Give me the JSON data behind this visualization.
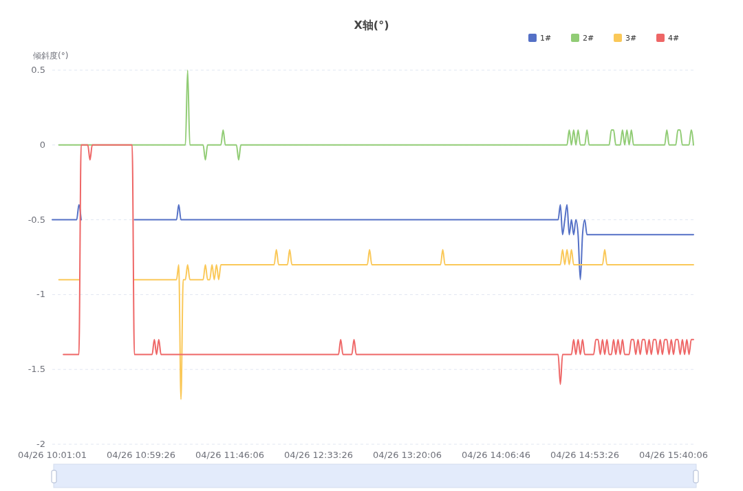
{
  "chart_data": {
    "type": "line",
    "title": "X轴(°)",
    "ylabel": "倾斜度(°)",
    "categories": [
      "04/26 10:01:01",
      null,
      null,
      null,
      null,
      null,
      null,
      null,
      null,
      null,
      null,
      null,
      null,
      null,
      null,
      null,
      null,
      null,
      null,
      null,
      null,
      null,
      null,
      null,
      null,
      null,
      null,
      null,
      null,
      null,
      null,
      null,
      null,
      null,
      null,
      null,
      null,
      null,
      null,
      null,
      "04/26 10:59:26",
      null,
      null,
      null,
      null,
      null,
      null,
      null,
      null,
      null,
      null,
      null,
      null,
      null,
      null,
      null,
      null,
      null,
      null,
      null,
      null,
      null,
      null,
      null,
      null,
      null,
      null,
      null,
      null,
      null,
      null,
      null,
      null,
      null,
      null,
      null,
      null,
      null,
      null,
      null,
      "04/26 11:46:06",
      null,
      null,
      null,
      null,
      null,
      null,
      null,
      null,
      null,
      null,
      null,
      null,
      null,
      null,
      null,
      null,
      null,
      null,
      null,
      null,
      null,
      null,
      null,
      null,
      null,
      null,
      null,
      null,
      null,
      null,
      null,
      null,
      null,
      null,
      null,
      null,
      null,
      null,
      null,
      "04/26 12:33:26",
      null,
      null,
      null,
      null,
      null,
      null,
      null,
      null,
      null,
      null,
      null,
      null,
      null,
      null,
      null,
      null,
      null,
      null,
      null,
      null,
      null,
      null,
      null,
      null,
      null,
      null,
      null,
      null,
      null,
      null,
      null,
      null,
      null,
      null,
      null,
      null,
      null,
      null,
      null,
      "04/26 13:20:06",
      null,
      null,
      null,
      null,
      null,
      null,
      null,
      null,
      null,
      null,
      null,
      null,
      null,
      null,
      null,
      null,
      null,
      null,
      null,
      null,
      null,
      null,
      null,
      null,
      null,
      null,
      null,
      null,
      null,
      null,
      null,
      null,
      null,
      null,
      null,
      null,
      null,
      null,
      null,
      "04/26 14:06:46",
      null,
      null,
      null,
      null,
      null,
      null,
      null,
      null,
      null,
      null,
      null,
      null,
      null,
      null,
      null,
      null,
      null,
      null,
      null,
      null,
      null,
      null,
      null,
      null,
      null,
      null,
      null,
      null,
      null,
      null,
      null,
      null,
      null,
      null,
      null,
      null,
      null,
      null,
      null,
      "04/26 14:53:26",
      null,
      null,
      null,
      null,
      null,
      null,
      null,
      null,
      null,
      null,
      null,
      null,
      null,
      null,
      null,
      null,
      null,
      null,
      null,
      null,
      null,
      null,
      null,
      null,
      null,
      null,
      null,
      null,
      null,
      null,
      null,
      null,
      null,
      null,
      null,
      null,
      null,
      null,
      null,
      "04/26 15:40:06",
      null,
      null,
      null,
      null,
      null,
      null,
      null,
      null,
      null
    ],
    "series": [
      {
        "name": "1#",
        "color": "#5470c6",
        "values": [
          -0.5,
          -0.5,
          -0.5,
          -0.5,
          -0.5,
          -0.5,
          -0.5,
          -0.5,
          -0.5,
          -0.5,
          -0.5,
          -0.5,
          -0.4,
          -0.5,
          null,
          null,
          null,
          null,
          null,
          null,
          null,
          null,
          null,
          null,
          null,
          null,
          null,
          null,
          null,
          null,
          null,
          null,
          null,
          null,
          null,
          null,
          null,
          -0.5,
          -0.5,
          -0.5,
          -0.5,
          -0.5,
          -0.5,
          -0.5,
          -0.5,
          -0.5,
          -0.5,
          -0.5,
          -0.5,
          -0.5,
          -0.5,
          -0.5,
          -0.5,
          -0.5,
          -0.5,
          -0.5,
          -0.5,
          -0.4,
          -0.5,
          -0.5,
          -0.5,
          -0.5,
          -0.5,
          -0.5,
          -0.5,
          -0.5,
          -0.5,
          -0.5,
          -0.5,
          -0.5,
          -0.5,
          -0.5,
          -0.5,
          -0.5,
          -0.5,
          -0.5,
          -0.5,
          -0.5,
          -0.5,
          -0.5,
          -0.5,
          -0.5,
          -0.5,
          -0.5,
          -0.5,
          -0.5,
          -0.5,
          -0.5,
          -0.5,
          -0.5,
          -0.5,
          -0.5,
          -0.5,
          -0.5,
          -0.5,
          -0.5,
          -0.5,
          -0.5,
          -0.5,
          -0.5,
          -0.5,
          -0.5,
          -0.5,
          -0.5,
          -0.5,
          -0.5,
          -0.5,
          -0.5,
          -0.5,
          -0.5,
          -0.5,
          -0.5,
          -0.5,
          -0.5,
          -0.5,
          -0.5,
          -0.5,
          -0.5,
          -0.5,
          -0.5,
          -0.5,
          -0.5,
          -0.5,
          -0.5,
          -0.5,
          -0.5,
          -0.5,
          -0.5,
          -0.5,
          -0.5,
          -0.5,
          -0.5,
          -0.5,
          -0.5,
          -0.5,
          -0.5,
          -0.5,
          -0.5,
          -0.5,
          -0.5,
          -0.5,
          -0.5,
          -0.5,
          -0.5,
          -0.5,
          -0.5,
          -0.5,
          -0.5,
          -0.5,
          -0.5,
          -0.5,
          -0.5,
          -0.5,
          -0.5,
          -0.5,
          -0.5,
          -0.5,
          -0.5,
          -0.5,
          -0.5,
          -0.5,
          -0.5,
          -0.5,
          -0.5,
          -0.5,
          -0.5,
          -0.5,
          -0.5,
          -0.5,
          -0.5,
          -0.5,
          -0.5,
          -0.5,
          -0.5,
          -0.5,
          -0.5,
          -0.5,
          -0.5,
          -0.5,
          -0.5,
          -0.5,
          -0.5,
          -0.5,
          -0.5,
          -0.5,
          -0.5,
          -0.5,
          -0.5,
          -0.5,
          -0.5,
          -0.5,
          -0.5,
          -0.5,
          -0.5,
          -0.5,
          -0.5,
          -0.5,
          -0.5,
          -0.5,
          -0.5,
          -0.5,
          -0.5,
          -0.5,
          -0.5,
          -0.5,
          -0.5,
          -0.5,
          -0.5,
          -0.5,
          -0.5,
          -0.5,
          -0.5,
          -0.5,
          -0.5,
          -0.5,
          -0.5,
          -0.5,
          -0.5,
          -0.5,
          -0.5,
          -0.5,
          -0.5,
          -0.5,
          -0.5,
          -0.5,
          -0.5,
          -0.5,
          -0.5,
          -0.5,
          -0.4,
          -0.6,
          -0.5,
          -0.4,
          -0.6,
          -0.5,
          -0.6,
          -0.5,
          -0.6,
          -0.9,
          -0.6,
          -0.5,
          -0.6,
          -0.6,
          -0.6,
          -0.6,
          -0.6,
          -0.6,
          -0.6,
          -0.6,
          -0.6,
          -0.6,
          -0.6,
          -0.6,
          -0.6,
          -0.6,
          -0.6,
          -0.6,
          -0.6,
          -0.6,
          -0.6,
          -0.6,
          -0.6,
          -0.6,
          -0.6,
          -0.6,
          -0.6,
          -0.6,
          -0.6,
          -0.6,
          -0.6,
          -0.6,
          -0.6,
          -0.6,
          -0.6,
          -0.6,
          -0.6,
          -0.6,
          -0.6,
          -0.6,
          -0.6,
          -0.6,
          -0.6,
          -0.6,
          -0.6,
          -0.6,
          -0.6,
          -0.6,
          -0.6,
          -0.6,
          -0.6
        ]
      },
      {
        "name": "2#",
        "color": "#91cc75",
        "values": [
          null,
          null,
          null,
          0,
          0,
          0,
          0,
          0,
          0,
          0,
          0,
          0,
          0,
          0,
          0,
          0,
          0,
          0,
          0,
          0,
          0,
          0,
          0,
          0,
          0,
          0,
          0,
          0,
          0,
          0,
          0,
          0,
          0,
          0,
          0,
          0,
          0,
          0,
          0,
          0,
          0,
          0,
          0,
          0,
          0,
          0,
          0,
          0,
          0,
          0,
          0,
          0,
          0,
          0,
          0,
          0,
          0,
          0,
          0,
          0,
          0,
          0.5,
          0,
          0,
          0,
          0,
          0,
          0,
          0,
          -0.1,
          0,
          0,
          0,
          0,
          0,
          0,
          0,
          0.1,
          0,
          0,
          0,
          0,
          0,
          0,
          -0.1,
          0,
          0,
          0,
          0,
          0,
          0,
          0,
          0,
          0,
          0,
          0,
          0,
          0,
          0,
          0,
          0,
          0,
          0,
          0,
          0,
          0,
          0,
          0,
          0,
          0,
          0,
          0,
          0,
          0,
          0,
          0,
          0,
          0,
          0,
          0,
          0,
          0,
          0,
          0,
          0,
          0,
          0,
          0,
          0,
          0,
          0,
          0,
          0,
          0,
          0,
          0,
          0,
          0,
          0,
          0,
          0,
          0,
          0,
          0,
          0,
          0,
          0,
          0,
          0,
          0,
          0,
          0,
          0,
          0,
          0,
          0,
          0,
          0,
          0,
          0,
          0,
          0,
          0,
          0,
          0,
          0,
          0,
          0,
          0,
          0,
          0,
          0,
          0,
          0,
          0,
          0,
          0,
          0,
          0,
          0,
          0,
          0,
          0,
          0,
          0,
          0,
          0,
          0,
          0,
          0,
          0,
          0,
          0,
          0,
          0,
          0,
          0,
          0,
          0,
          0,
          0,
          0,
          0,
          0,
          0,
          0,
          0,
          0,
          0,
          0,
          0,
          0,
          0,
          0,
          0,
          0,
          0,
          0,
          0,
          0,
          0,
          0,
          0,
          0,
          0,
          0,
          0,
          0,
          0,
          0,
          0,
          0,
          0,
          0.1,
          0,
          0.1,
          0,
          0.1,
          0,
          0,
          0,
          0.1,
          0,
          0,
          0,
          0,
          0,
          0,
          0,
          0,
          0,
          0,
          0.1,
          0.1,
          0,
          0,
          0,
          0.1,
          0,
          0.1,
          0,
          0.1,
          0,
          0,
          0,
          0,
          0,
          0,
          0,
          0,
          0,
          0,
          0,
          0,
          0,
          0,
          0,
          0.1,
          0,
          0,
          0,
          0,
          0.1,
          0.1,
          0,
          0,
          0,
          0,
          0.1,
          0
        ]
      },
      {
        "name": "3#",
        "color": "#fac858",
        "values": [
          null,
          null,
          null,
          -0.9,
          -0.9,
          -0.9,
          -0.9,
          -0.9,
          -0.9,
          -0.9,
          -0.9,
          -0.9,
          -0.9,
          null,
          null,
          null,
          null,
          null,
          null,
          null,
          null,
          null,
          null,
          null,
          null,
          null,
          null,
          null,
          null,
          null,
          null,
          null,
          null,
          null,
          null,
          null,
          null,
          -0.9,
          -0.9,
          -0.9,
          -0.9,
          -0.9,
          -0.9,
          -0.9,
          -0.9,
          -0.9,
          -0.9,
          -0.9,
          -0.9,
          -0.9,
          -0.9,
          -0.9,
          -0.9,
          -0.9,
          -0.9,
          -0.9,
          -0.9,
          -0.8,
          -1.7,
          -0.9,
          -0.9,
          -0.8,
          -0.9,
          -0.9,
          -0.9,
          -0.9,
          -0.9,
          -0.9,
          -0.9,
          -0.8,
          -0.9,
          -0.9,
          -0.8,
          -0.9,
          -0.8,
          -0.9,
          -0.8,
          -0.8,
          -0.8,
          -0.8,
          -0.8,
          -0.8,
          -0.8,
          -0.8,
          -0.8,
          -0.8,
          -0.8,
          -0.8,
          -0.8,
          -0.8,
          -0.8,
          -0.8,
          -0.8,
          -0.8,
          -0.8,
          -0.8,
          -0.8,
          -0.8,
          -0.8,
          -0.8,
          -0.8,
          -0.7,
          -0.8,
          -0.8,
          -0.8,
          -0.8,
          -0.8,
          -0.7,
          -0.8,
          -0.8,
          -0.8,
          -0.8,
          -0.8,
          -0.8,
          -0.8,
          -0.8,
          -0.8,
          -0.8,
          -0.8,
          -0.8,
          -0.8,
          -0.8,
          -0.8,
          -0.8,
          -0.8,
          -0.8,
          -0.8,
          -0.8,
          -0.8,
          -0.8,
          -0.8,
          -0.8,
          -0.8,
          -0.8,
          -0.8,
          -0.8,
          -0.8,
          -0.8,
          -0.8,
          -0.8,
          -0.8,
          -0.8,
          -0.8,
          -0.7,
          -0.8,
          -0.8,
          -0.8,
          -0.8,
          -0.8,
          -0.8,
          -0.8,
          -0.8,
          -0.8,
          -0.8,
          -0.8,
          -0.8,
          -0.8,
          -0.8,
          -0.8,
          -0.8,
          -0.8,
          -0.8,
          -0.8,
          -0.8,
          -0.8,
          -0.8,
          -0.8,
          -0.8,
          -0.8,
          -0.8,
          -0.8,
          -0.8,
          -0.8,
          -0.8,
          -0.8,
          -0.8,
          -0.7,
          -0.8,
          -0.8,
          -0.8,
          -0.8,
          -0.8,
          -0.8,
          -0.8,
          -0.8,
          -0.8,
          -0.8,
          -0.8,
          -0.8,
          -0.8,
          -0.8,
          -0.8,
          -0.8,
          -0.8,
          -0.8,
          -0.8,
          -0.8,
          -0.8,
          -0.8,
          -0.8,
          -0.8,
          -0.8,
          -0.8,
          -0.8,
          -0.8,
          -0.8,
          -0.8,
          -0.8,
          -0.8,
          -0.8,
          -0.8,
          -0.8,
          -0.8,
          -0.8,
          -0.8,
          -0.8,
          -0.8,
          -0.8,
          -0.8,
          -0.8,
          -0.8,
          -0.8,
          -0.8,
          -0.8,
          -0.8,
          -0.8,
          -0.8,
          -0.8,
          -0.8,
          -0.8,
          -0.7,
          -0.8,
          -0.7,
          -0.8,
          -0.7,
          -0.8,
          -0.8,
          -0.8,
          -0.8,
          -0.8,
          -0.8,
          -0.8,
          -0.8,
          -0.8,
          -0.8,
          -0.8,
          -0.8,
          -0.8,
          -0.8,
          -0.7,
          -0.8,
          -0.8,
          -0.8,
          -0.8,
          -0.8,
          -0.8,
          -0.8,
          -0.8,
          -0.8,
          -0.8,
          -0.8,
          -0.8,
          -0.8,
          -0.8,
          -0.8,
          -0.8,
          -0.8,
          -0.8,
          -0.8,
          -0.8,
          -0.8,
          -0.8,
          -0.8,
          -0.8,
          -0.8,
          -0.8,
          -0.8,
          -0.8,
          -0.8,
          -0.8,
          -0.8,
          -0.8,
          -0.8,
          -0.8,
          -0.8,
          -0.8,
          -0.8,
          -0.8,
          -0.8,
          -0.8
        ]
      },
      {
        "name": "4#",
        "color": "#ee6666",
        "values": [
          null,
          null,
          null,
          null,
          null,
          -1.4,
          -1.4,
          -1.4,
          -1.4,
          -1.4,
          -1.4,
          -1.4,
          -1.4,
          0,
          0,
          0,
          0,
          -0.1,
          0,
          0,
          0,
          0,
          0,
          0,
          0,
          0,
          0,
          0,
          0,
          0,
          0,
          0,
          0,
          0,
          0,
          0,
          0,
          -1.4,
          -1.4,
          -1.4,
          -1.4,
          -1.4,
          -1.4,
          -1.4,
          -1.4,
          -1.4,
          -1.3,
          -1.4,
          -1.3,
          -1.4,
          -1.4,
          -1.4,
          -1.4,
          -1.4,
          -1.4,
          -1.4,
          -1.4,
          -1.4,
          -1.4,
          -1.4,
          -1.4,
          -1.4,
          -1.4,
          -1.4,
          -1.4,
          -1.4,
          -1.4,
          -1.4,
          -1.4,
          -1.4,
          -1.4,
          -1.4,
          -1.4,
          -1.4,
          -1.4,
          -1.4,
          -1.4,
          -1.4,
          -1.4,
          -1.4,
          -1.4,
          -1.4,
          -1.4,
          -1.4,
          -1.4,
          -1.4,
          -1.4,
          -1.4,
          -1.4,
          -1.4,
          -1.4,
          -1.4,
          -1.4,
          -1.4,
          -1.4,
          -1.4,
          -1.4,
          -1.4,
          -1.4,
          -1.4,
          -1.4,
          -1.4,
          -1.4,
          -1.4,
          -1.4,
          -1.4,
          -1.4,
          -1.4,
          -1.4,
          -1.4,
          -1.4,
          -1.4,
          -1.4,
          -1.4,
          -1.4,
          -1.4,
          -1.4,
          -1.4,
          -1.4,
          -1.4,
          -1.4,
          -1.4,
          -1.4,
          -1.4,
          -1.4,
          -1.4,
          -1.4,
          -1.4,
          -1.4,
          -1.4,
          -1.3,
          -1.4,
          -1.4,
          -1.4,
          -1.4,
          -1.4,
          -1.3,
          -1.4,
          -1.4,
          -1.4,
          -1.4,
          -1.4,
          -1.4,
          -1.4,
          -1.4,
          -1.4,
          -1.4,
          -1.4,
          -1.4,
          -1.4,
          -1.4,
          -1.4,
          -1.4,
          -1.4,
          -1.4,
          -1.4,
          -1.4,
          -1.4,
          -1.4,
          -1.4,
          -1.4,
          -1.4,
          -1.4,
          -1.4,
          -1.4,
          -1.4,
          -1.4,
          -1.4,
          -1.4,
          -1.4,
          -1.4,
          -1.4,
          -1.4,
          -1.4,
          -1.4,
          -1.4,
          -1.4,
          -1.4,
          -1.4,
          -1.4,
          -1.4,
          -1.4,
          -1.4,
          -1.4,
          -1.4,
          -1.4,
          -1.4,
          -1.4,
          -1.4,
          -1.4,
          -1.4,
          -1.4,
          -1.4,
          -1.4,
          -1.4,
          -1.4,
          -1.4,
          -1.4,
          -1.4,
          -1.4,
          -1.4,
          -1.4,
          -1.4,
          -1.4,
          -1.4,
          -1.4,
          -1.4,
          -1.4,
          -1.4,
          -1.4,
          -1.4,
          -1.4,
          -1.4,
          -1.4,
          -1.4,
          -1.4,
          -1.4,
          -1.4,
          -1.4,
          -1.4,
          -1.4,
          -1.4,
          -1.4,
          -1.4,
          -1.4,
          -1.4,
          -1.4,
          -1.4,
          -1.4,
          -1.6,
          -1.4,
          -1.4,
          -1.4,
          -1.4,
          -1.4,
          -1.3,
          -1.4,
          -1.3,
          -1.4,
          -1.3,
          -1.4,
          -1.4,
          -1.4,
          -1.4,
          -1.4,
          -1.3,
          -1.3,
          -1.4,
          -1.3,
          -1.4,
          -1.3,
          -1.4,
          -1.4,
          -1.3,
          -1.4,
          -1.3,
          -1.4,
          -1.3,
          -1.4,
          -1.4,
          -1.4,
          -1.3,
          -1.3,
          -1.4,
          -1.3,
          -1.4,
          -1.3,
          -1.3,
          -1.4,
          -1.3,
          -1.4,
          -1.3,
          -1.3,
          -1.4,
          -1.3,
          -1.4,
          -1.3,
          -1.3,
          -1.4,
          -1.3,
          -1.4,
          -1.3,
          -1.3,
          -1.4,
          -1.3,
          -1.4,
          -1.3,
          -1.4,
          -1.3,
          -1.3
        ]
      }
    ],
    "ylim": [
      -2,
      0.5
    ],
    "yticks": [
      -2,
      -1.5,
      -1,
      -0.5,
      0,
      0.5
    ],
    "grid": "y",
    "legend": "top right",
    "marker": "none"
  }
}
